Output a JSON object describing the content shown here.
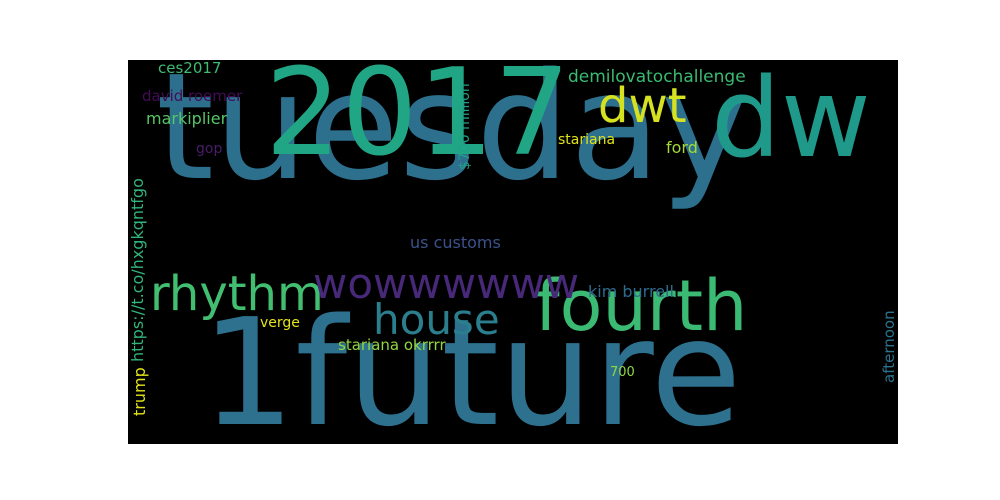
{
  "words": {
    "tuesday": "tuesday",
    "future": "1future",
    "year": "2017",
    "dw": "dw",
    "fourth": "fourth",
    "dwt": "dwt",
    "rhythm": "rhythm",
    "house": "house",
    "wow": "wowwwwww",
    "demilovatochallenge": "demilovatochallenge",
    "ces2017": "ces2017",
    "david_roemer": "david roemer",
    "markiplier": "markiplier",
    "gop": "gop",
    "stariana": "stariana",
    "ford": "ford",
    "us_customs": "us customs",
    "kim_burrell": "kim burrell",
    "verge": "verge",
    "stariana_okrrrr": "stariana okrrrr",
    "seven_hundred": "700",
    "link": "https://t.co/hxgkqntfgo",
    "million": "$700 million",
    "trump": "trump",
    "afternoon": "afternoon"
  },
  "colors": {
    "blue": "#2d708e",
    "teal": "#21a685",
    "green": "#3bba73",
    "mint": "#42be71",
    "yellow": "#e0e31a",
    "purple": "#482878",
    "violet": "#440c58",
    "slate": "#3b528b",
    "lime": "#a2da37",
    "sea": "#56c667"
  }
}
